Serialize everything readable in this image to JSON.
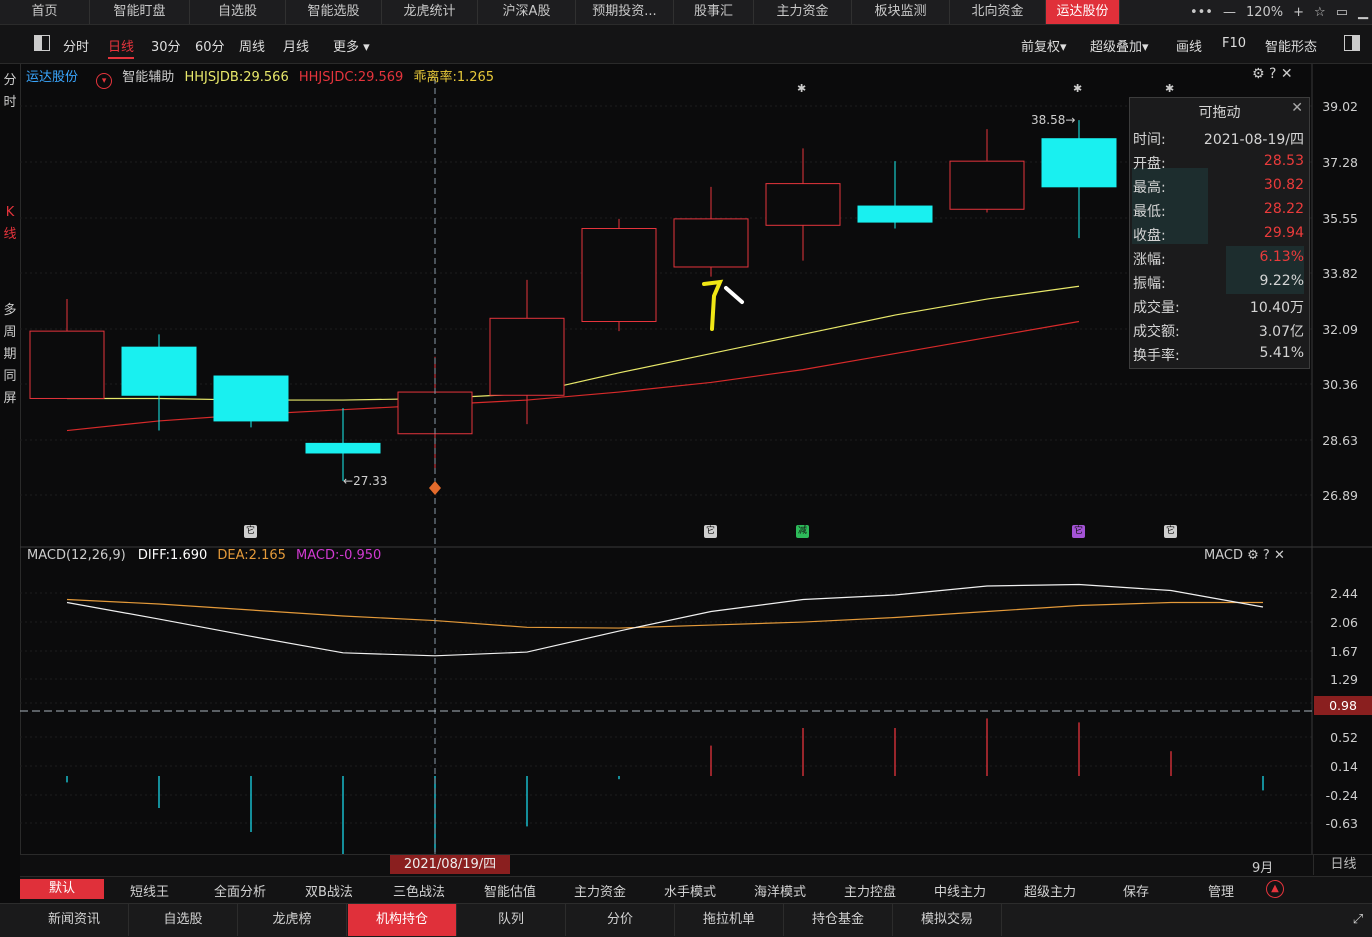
{
  "top_tabs": [
    "首页",
    "智能盯盘",
    "自选股",
    "智能选股",
    "龙虎统计",
    "沪深A股",
    "预期投资...",
    "股事汇",
    "主力资金",
    "板块监测",
    "北向资金",
    "运达股份"
  ],
  "top_right": {
    "zoom": "120%"
  },
  "toolbar": {
    "periods": [
      "分时",
      "日线",
      "30分",
      "60分",
      "周线",
      "月线",
      "更多"
    ],
    "right": [
      "前复权",
      "超级叠加",
      "画线",
      "F10",
      "智能形态"
    ]
  },
  "left_strip": {
    "fenshi": "分时",
    "kline": "K线",
    "multi": "多周期同屏"
  },
  "kline_header": {
    "stock": "运达股份",
    "assist": "智能辅助",
    "hhjsjdb": "HHJSJDB:29.566",
    "hhjsjdc": "HHJSJDC:29.569",
    "deviation": "乖离率:1.265"
  },
  "price_axis": [
    "39.02",
    "37.28",
    "35.55",
    "33.82",
    "32.09",
    "30.36",
    "28.63",
    "26.89"
  ],
  "annotations": {
    "high_mark": "38.58",
    "low_mark": "27.33",
    "cursor_date": "2021/08/19/四",
    "month": "9月",
    "period_tag": "日线"
  },
  "popup": {
    "title": "可拖动",
    "rows": [
      {
        "k": "时间:",
        "v": "2021-08-19/四",
        "red": false
      },
      {
        "k": "开盘:",
        "v": "28.53",
        "red": true
      },
      {
        "k": "最高:",
        "v": "30.82",
        "red": true
      },
      {
        "k": "最低:",
        "v": "28.22",
        "red": true
      },
      {
        "k": "收盘:",
        "v": "29.94",
        "red": true
      },
      {
        "k": "涨幅:",
        "v": "6.13%",
        "red": true
      },
      {
        "k": "振幅:",
        "v": "9.22%",
        "red": false
      },
      {
        "k": "成交量:",
        "v": "10.40万",
        "red": false
      },
      {
        "k": "成交额:",
        "v": "3.07亿",
        "red": false
      },
      {
        "k": "换手率:",
        "v": "5.41%",
        "red": false
      }
    ]
  },
  "markers": [
    "它",
    "它",
    "减",
    "它",
    "它"
  ],
  "macd_header": {
    "title": "MACD(12,26,9)",
    "diff": "DIFF:1.690",
    "dea": "DEA:2.165",
    "macd": "MACD:-0.950",
    "right_label": "MACD"
  },
  "macd_axis": [
    "2.44",
    "2.06",
    "1.67",
    "1.29",
    "0.98",
    "0.52",
    "0.14",
    "-0.24",
    "-0.63"
  ],
  "bottom_tabs1": [
    "默认",
    "短线王",
    "全面分析",
    "双B战法",
    "三色战法",
    "智能估值",
    "主力资金",
    "水手模式",
    "海洋模式",
    "主力控盘",
    "中线主力",
    "超级主力",
    "保存",
    "管理"
  ],
  "bottom_tabs2": [
    "新闻资讯",
    "自选股",
    "龙虎榜",
    "机构持仓",
    "队列",
    "分价",
    "拖拉机单",
    "持仓基金",
    "模拟交易"
  ],
  "chart_data": {
    "type": "candlestick",
    "series": [
      {
        "open": 29.9,
        "close": 32.0,
        "high": 33.0,
        "low": 29.9
      },
      {
        "open": 31.5,
        "close": 30.0,
        "high": 31.9,
        "low": 28.9
      },
      {
        "open": 30.6,
        "close": 29.2,
        "high": 30.6,
        "low": 29.0
      },
      {
        "open": 28.5,
        "close": 28.2,
        "high": 29.6,
        "low": 27.33
      },
      {
        "open": 28.8,
        "close": 30.1,
        "high": 31.2,
        "low": 27.6
      },
      {
        "open": 30.0,
        "close": 32.4,
        "high": 33.6,
        "low": 29.1
      },
      {
        "open": 32.3,
        "close": 35.2,
        "high": 35.5,
        "low": 32.0
      },
      {
        "open": 34.0,
        "close": 35.5,
        "high": 36.5,
        "low": 33.7
      },
      {
        "open": 35.3,
        "close": 36.6,
        "high": 37.7,
        "low": 34.2
      },
      {
        "open": 35.9,
        "close": 35.4,
        "high": 37.3,
        "low": 35.2
      },
      {
        "open": 35.8,
        "close": 37.3,
        "high": 38.3,
        "low": 35.7
      },
      {
        "open": 38.0,
        "close": 36.5,
        "high": 38.58,
        "low": 34.9
      }
    ],
    "hhjsjdb": [
      29.9,
      29.9,
      29.85,
      29.85,
      29.9,
      30.05,
      30.7,
      31.3,
      31.9,
      32.5,
      33.0,
      33.4
    ],
    "hhjsjdc": [
      28.9,
      29.2,
      29.4,
      29.55,
      29.7,
      29.85,
      30.1,
      30.4,
      30.8,
      31.3,
      31.8,
      32.3
    ],
    "ylim": [
      26.89,
      39.02
    ],
    "macd": {
      "diff": [
        2.4,
        2.18,
        1.95,
        1.73,
        1.69,
        1.74,
        2.02,
        2.28,
        2.44,
        2.5,
        2.62,
        2.64,
        2.56,
        2.34
      ],
      "dea": [
        2.44,
        2.38,
        2.3,
        2.22,
        2.16,
        2.07,
        2.06,
        2.1,
        2.14,
        2.2,
        2.28,
        2.36,
        2.4,
        2.4
      ],
      "bar": [
        -0.08,
        -0.4,
        -0.7,
        -0.98,
        -0.95,
        -0.63,
        -0.04,
        0.38,
        0.6,
        0.6,
        0.72,
        0.67,
        0.31,
        -0.18
      ],
      "ylim": [
        -0.95,
        2.7
      ]
    }
  }
}
